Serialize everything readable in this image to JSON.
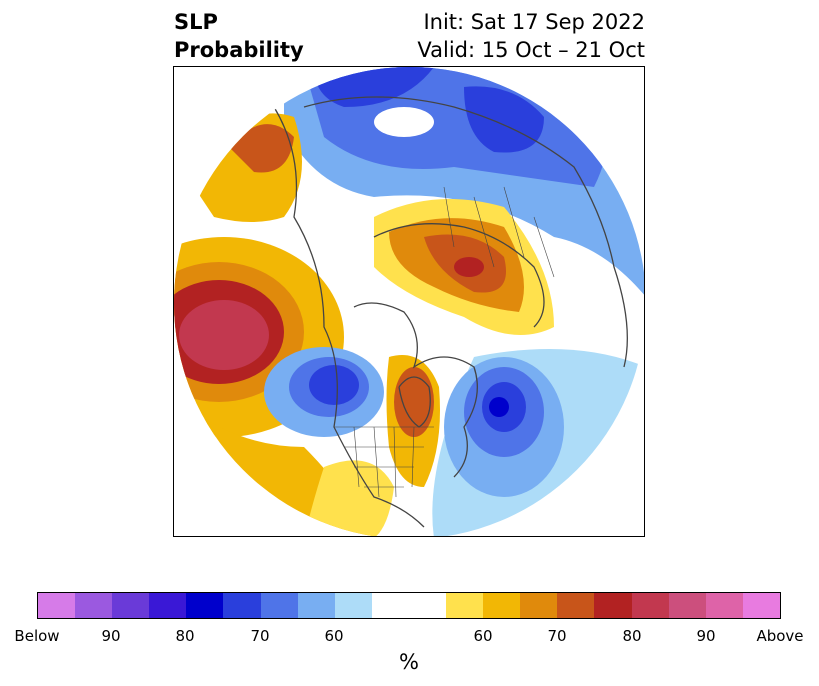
{
  "title": {
    "left_line1": "SLP",
    "left_line2": "Probability",
    "right_line1": "Init: Sat 17 Sep 2022",
    "right_line2": "Valid: 15 Oct – 21 Oct"
  },
  "colorbar": {
    "unit": "%",
    "colors": [
      "#d67be8",
      "#9b59e0",
      "#6a3ad8",
      "#3a18d6",
      "#0000cc",
      "#2a3fdc",
      "#4f74e8",
      "#78aef2",
      "#addcf8",
      "#ffffff",
      "#ffffff",
      "#ffe14d",
      "#f2b705",
      "#e08a0c",
      "#c8551a",
      "#b22222",
      "#c2384f",
      "#cc4f7d",
      "#de63a8",
      "#e87be0"
    ],
    "tick_labels": [
      "Below",
      "90",
      "80",
      "70",
      "60",
      "60",
      "70",
      "80",
      "90",
      "Above"
    ]
  },
  "map": {
    "projection": "north-polar-stereographic",
    "color_scale": "above/below normal probability"
  }
}
